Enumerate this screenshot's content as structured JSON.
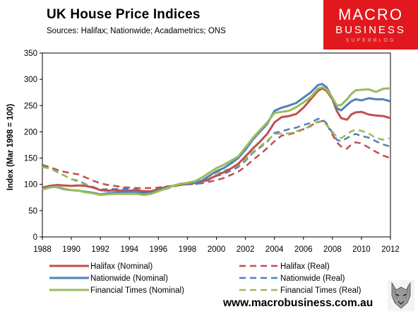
{
  "header": {
    "title": "UK House  Price Indices",
    "subtitle": "Sources: Halifax; Nationwide; Acadametrics; ONS"
  },
  "logo": {
    "line1": "MACRO",
    "line2": "BUSINESS",
    "line3": "SUPERBLOG"
  },
  "footer": {
    "url": "www.macrobusiness.com.au"
  },
  "colors": {
    "halifax": "#c0504d",
    "nationwide": "#4f81bd",
    "financial_times": "#9bbb59",
    "plot_background": "#ffffff",
    "logo_background": "#e1181d"
  },
  "chart_data": {
    "type": "line",
    "ylabel": "Index (Mar 1998 = 100)",
    "xlim": [
      1988,
      2012
    ],
    "ylim": [
      0,
      350
    ],
    "xticks": [
      "1988",
      "1990",
      "1992",
      "1994",
      "1996",
      "1998",
      "2000",
      "2002",
      "2004",
      "2006",
      "2008",
      "2010",
      "2012"
    ],
    "yticks": [
      "0",
      "50",
      "100",
      "150",
      "200",
      "250",
      "300",
      "350"
    ],
    "grid": false,
    "legend_position": "bottom",
    "series": [
      {
        "name": "Halifax (Nominal)",
        "key": "halifax",
        "style": "solid",
        "x": [
          1988,
          1988.5,
          1989,
          1989.5,
          1990,
          1990.5,
          1991,
          1991.5,
          1992,
          1992.5,
          1993,
          1993.5,
          1994,
          1994.5,
          1995,
          1995.5,
          1996,
          1996.5,
          1997,
          1997.5,
          1998,
          1998.5,
          1999,
          1999.5,
          2000,
          2000.5,
          2001,
          2001.5,
          2002,
          2002.5,
          2003,
          2003.5,
          2004,
          2004.5,
          2005,
          2005.5,
          2006,
          2006.5,
          2007,
          2007.3,
          2007.6,
          2008,
          2008.3,
          2008.6,
          2009,
          2009.3,
          2009.6,
          2010,
          2010.5,
          2011,
          2011.5,
          2012
        ],
        "y": [
          94,
          97,
          99,
          98,
          97,
          98,
          97,
          94,
          89,
          88,
          89,
          88,
          88,
          89,
          87,
          87,
          91,
          95,
          97,
          99,
          101,
          103,
          105,
          110,
          117,
          123,
          130,
          139,
          153,
          168,
          181,
          196,
          218,
          228,
          230,
          234,
          246,
          262,
          278,
          283,
          278,
          262,
          240,
          226,
          223,
          233,
          237,
          238,
          233,
          231,
          230,
          226
        ]
      },
      {
        "name": "Halifax (Real)",
        "key": "halifax_real",
        "style": "dashed",
        "color_key": "halifax",
        "x": [
          1988,
          1988.5,
          1989,
          1989.5,
          1990,
          1990.5,
          1991,
          1991.5,
          1992,
          1992.5,
          1993,
          1993.5,
          1994,
          1994.5,
          1995,
          1995.5,
          1996,
          1996.5,
          1997,
          1997.5,
          1998,
          1998.5,
          1999,
          1999.5,
          2000,
          2000.5,
          2001,
          2001.5,
          2002,
          2002.5,
          2003,
          2003.5,
          2004,
          2004.5,
          2005,
          2005.5,
          2006,
          2006.5,
          2007,
          2007.3,
          2007.6,
          2008,
          2008.3,
          2008.6,
          2009,
          2009.3,
          2009.6,
          2010,
          2010.5,
          2011,
          2011.5,
          2012
        ],
        "y": [
          137,
          133,
          128,
          124,
          121,
          119,
          113,
          107,
          102,
          99,
          97,
          95,
          94,
          93,
          93,
          93,
          94,
          96,
          97,
          99,
          100,
          101,
          102,
          105,
          108,
          112,
          118,
          124,
          134,
          146,
          157,
          169,
          182,
          193,
          195,
          199,
          205,
          212,
          218,
          221,
          214,
          195,
          180,
          172,
          168,
          176,
          180,
          178,
          170,
          162,
          155,
          150
        ]
      },
      {
        "name": "Nationwide (Nominal)",
        "key": "nationwide",
        "style": "solid",
        "x": [
          1988,
          1988.5,
          1989,
          1989.5,
          1990,
          1990.5,
          1991,
          1991.5,
          1992,
          1992.5,
          1993,
          1993.5,
          1994,
          1994.5,
          1995,
          1995.5,
          1996,
          1996.5,
          1997,
          1997.5,
          1998,
          1998.5,
          1999,
          1999.5,
          2000,
          2000.5,
          2001,
          2001.5,
          2002,
          2002.5,
          2003,
          2003.5,
          2004,
          2004.5,
          2005,
          2005.5,
          2006,
          2006.5,
          2007,
          2007.3,
          2007.6,
          2008,
          2008.3,
          2008.6,
          2009,
          2009.3,
          2009.6,
          2010,
          2010.5,
          2011,
          2011.5,
          2012
        ],
        "y": [
          91,
          95,
          95,
          91,
          89,
          88,
          86,
          84,
          81,
          83,
          84,
          86,
          86,
          86,
          83,
          84,
          89,
          93,
          97,
          101,
          102,
          103,
          107,
          116,
          125,
          131,
          140,
          150,
          166,
          185,
          200,
          215,
          240,
          246,
          250,
          255,
          265,
          275,
          289,
          291,
          285,
          264,
          245,
          241,
          251,
          258,
          262,
          260,
          264,
          262,
          262,
          258
        ]
      },
      {
        "name": "Nationwide (Real)",
        "key": "nationwide_real",
        "style": "dashed",
        "color_key": "nationwide",
        "x": [
          1988,
          1988.5,
          1989,
          1989.5,
          1990,
          1990.5,
          1991,
          1991.5,
          1992,
          1992.5,
          1993,
          1993.5,
          1994,
          1994.5,
          1995,
          1995.5,
          1996,
          1996.5,
          1997,
          1997.5,
          1998,
          1998.5,
          1999,
          1999.5,
          2000,
          2000.5,
          2001,
          2001.5,
          2002,
          2002.5,
          2003,
          2003.5,
          2004,
          2004.5,
          2005,
          2005.5,
          2006,
          2006.5,
          2007,
          2007.3,
          2007.6,
          2008,
          2008.3,
          2008.6,
          2009,
          2009.3,
          2009.6,
          2010,
          2010.5,
          2011,
          2011.5,
          2012
        ],
        "y": [
          134,
          131,
          124,
          117,
          110,
          107,
          100,
          95,
          90,
          91,
          91,
          92,
          91,
          90,
          86,
          86,
          90,
          93,
          96,
          99,
          100,
          100,
          103,
          109,
          116,
          120,
          126,
          133,
          145,
          160,
          170,
          181,
          198,
          201,
          205,
          208,
          213,
          217,
          225,
          224,
          216,
          198,
          185,
          182,
          188,
          193,
          196,
          192,
          189,
          182,
          176,
          172
        ]
      },
      {
        "name": "Financial Times (Nominal)",
        "key": "financial_times",
        "style": "solid",
        "x": [
          1988,
          1988.5,
          1989,
          1989.5,
          1990,
          1990.5,
          1991,
          1991.5,
          1992,
          1992.5,
          1993,
          1993.5,
          1994,
          1994.5,
          1995,
          1995.5,
          1996,
          1996.5,
          1997,
          1997.5,
          1998,
          1998.5,
          1999,
          1999.5,
          2000,
          2000.5,
          2001,
          2001.5,
          2002,
          2002.5,
          2003,
          2003.5,
          2004,
          2004.5,
          2005,
          2005.5,
          2006,
          2006.5,
          2007,
          2007.3,
          2007.6,
          2008,
          2008.3,
          2008.6,
          2009,
          2009.3,
          2009.6,
          2010,
          2010.5,
          2011,
          2011.5,
          2012
        ],
        "y": [
          90,
          94,
          96,
          92,
          89,
          88,
          85,
          83,
          80,
          81,
          82,
          82,
          82,
          82,
          80,
          82,
          87,
          92,
          97,
          101,
          103,
          106,
          113,
          122,
          131,
          137,
          145,
          153,
          170,
          188,
          203,
          218,
          236,
          238,
          240,
          247,
          256,
          266,
          282,
          285,
          281,
          265,
          250,
          251,
          262,
          272,
          279,
          280,
          281,
          276,
          282,
          283
        ]
      },
      {
        "name": "Financial Times (Real)",
        "key": "financial_times_real",
        "style": "dashed",
        "color_key": "financial_times",
        "x": [
          1988,
          1988.5,
          1989,
          1989.5,
          1990,
          1990.5,
          1991,
          1991.5,
          1992,
          1992.5,
          1993,
          1993.5,
          1994,
          1994.5,
          1995,
          1995.5,
          1996,
          1996.5,
          1997,
          1997.5,
          1998,
          1998.5,
          1999,
          1999.5,
          2000,
          2000.5,
          2001,
          2001.5,
          2002,
          2002.5,
          2003,
          2003.5,
          2004,
          2004.5,
          2005,
          2005.5,
          2006,
          2006.5,
          2007,
          2007.3,
          2007.6,
          2008,
          2008.3,
          2008.6,
          2009,
          2009.3,
          2009.6,
          2010,
          2010.5,
          2011,
          2011.5,
          2012
        ],
        "y": [
          133,
          130,
          125,
          117,
          110,
          105,
          99,
          94,
          89,
          88,
          88,
          88,
          87,
          86,
          84,
          85,
          88,
          91,
          95,
          99,
          100,
          103,
          108,
          115,
          122,
          126,
          130,
          136,
          148,
          162,
          172,
          183,
          196,
          197,
          197,
          201,
          206,
          210,
          220,
          219,
          213,
          200,
          190,
          188,
          195,
          201,
          204,
          202,
          197,
          188,
          185,
          188
        ]
      }
    ]
  }
}
